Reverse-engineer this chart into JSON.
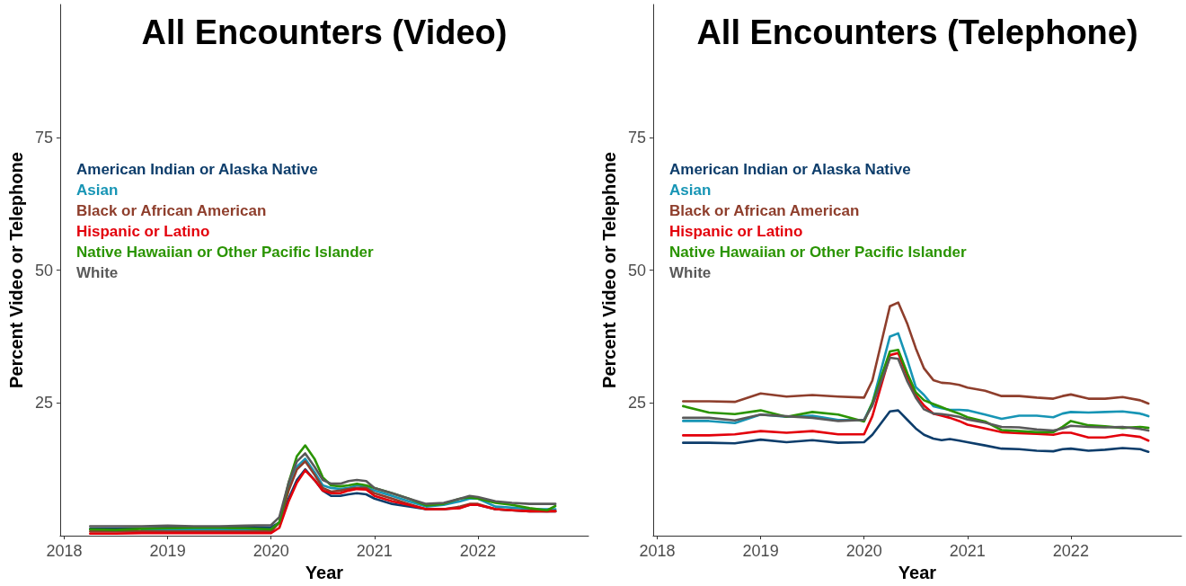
{
  "chart_data": [
    {
      "type": "line",
      "title": "All Encounters (Video)",
      "xlabel": "Year",
      "ylabel": "Percent Video or Telephone",
      "xlim": [
        2017.96,
        2023.07
      ],
      "ylim": [
        0,
        100
      ],
      "xticks": [
        2018,
        2019,
        2020,
        2021,
        2022
      ],
      "yticks": [
        25,
        50,
        75
      ],
      "grid": false,
      "legend": "top left",
      "marker": "none",
      "line_style": "solid",
      "x": [
        2018.25,
        2018.5,
        2018.75,
        2019,
        2019.25,
        2019.5,
        2019.75,
        2020,
        2020.08,
        2020.17,
        2020.25,
        2020.33,
        2020.42,
        2020.5,
        2020.58,
        2020.67,
        2020.75,
        2020.83,
        2020.92,
        2021,
        2021.17,
        2021.33,
        2021.5,
        2021.67,
        2021.83,
        2021.92,
        2022,
        2022.17,
        2022.33,
        2022.5,
        2022.67,
        2022.75
      ],
      "series": [
        {
          "name": "American Indian or Alaska Native",
          "color": "#0d3d6b",
          "values": [
            1.3,
            1.3,
            1.4,
            1.5,
            1.5,
            1.5,
            1.5,
            1.6,
            2.5,
            7,
            10.5,
            12.5,
            10.5,
            8.5,
            7.5,
            7.5,
            7.8,
            8,
            7.8,
            7,
            6,
            5.5,
            5,
            5,
            5.3,
            5.8,
            5.8,
            5,
            4.8,
            4.6,
            4.6,
            4.6
          ]
        },
        {
          "name": "Asian",
          "color": "#1795b5",
          "values": [
            null,
            null,
            1.1,
            1.1,
            1.2,
            1.2,
            1.2,
            1.2,
            2.5,
            9,
            13,
            14.5,
            12,
            9.5,
            9,
            8.8,
            9,
            9.5,
            9.2,
            8.5,
            7.5,
            6.5,
            5.5,
            5.8,
            6.5,
            7,
            7,
            5.5,
            5.3,
            5,
            5,
            5
          ]
        },
        {
          "name": "Black or African American",
          "color": "#8e3e2c",
          "values": [
            0.8,
            0.8,
            0.8,
            0.8,
            0.8,
            0.8,
            0.8,
            0.8,
            2.5,
            8.5,
            12.5,
            14,
            11.5,
            9,
            8.3,
            8.5,
            8.8,
            9,
            9,
            8,
            7,
            6,
            5,
            5,
            5.5,
            6,
            6,
            5,
            4.8,
            4.7,
            4.6,
            4.7
          ]
        },
        {
          "name": "Hispanic or Latino",
          "color": "#e3000b",
          "values": [
            0.4,
            0.4,
            0.5,
            0.5,
            0.5,
            0.5,
            0.5,
            0.5,
            1.5,
            6.5,
            10,
            12.3,
            10.5,
            8.5,
            8,
            8,
            8.5,
            8.8,
            8.7,
            7.5,
            6.5,
            5.8,
            5,
            5,
            5.2,
            5.8,
            5.8,
            5,
            4.8,
            4.6,
            4.6,
            4.6
          ]
        },
        {
          "name": "Native Hawaiian or Other Pacific Islander",
          "color": "#2a9400",
          "values": [
            1.2,
            1.1,
            1.3,
            1.4,
            1.5,
            1.5,
            1.4,
            1.2,
            2.5,
            10,
            15,
            17,
            14.5,
            11,
            9.5,
            9.3,
            9.5,
            9.8,
            9.5,
            9,
            8,
            7,
            5.7,
            6,
            7,
            7.2,
            7,
            6.2,
            5.8,
            5.2,
            4.8,
            5.6
          ]
        },
        {
          "name": "White",
          "color": "#595959",
          "values": [
            1.8,
            1.8,
            1.8,
            1.9,
            1.8,
            1.8,
            1.9,
            2,
            3.5,
            10,
            14,
            15.5,
            13,
            10.5,
            9.8,
            9.8,
            10.3,
            10.5,
            10.3,
            9,
            8,
            7,
            6,
            6.2,
            7,
            7.5,
            7.3,
            6.5,
            6.2,
            6,
            6,
            6
          ]
        }
      ]
    },
    {
      "type": "line",
      "title": "All Encounters (Telephone)",
      "xlabel": "Year",
      "ylabel": "Percent Video or Telephone",
      "xlim": [
        2017.96,
        2023.07
      ],
      "ylim": [
        0,
        100
      ],
      "xticks": [
        2018,
        2019,
        2020,
        2021,
        2022
      ],
      "yticks": [
        25,
        50,
        75
      ],
      "grid": false,
      "legend": "top left",
      "marker": "none",
      "line_style": "solid",
      "x": [
        2018.25,
        2018.5,
        2018.75,
        2019,
        2019.25,
        2019.5,
        2019.75,
        2020,
        2020.08,
        2020.25,
        2020.33,
        2020.42,
        2020.5,
        2020.58,
        2020.67,
        2020.75,
        2020.83,
        2020.92,
        2021,
        2021.17,
        2021.33,
        2021.5,
        2021.67,
        2021.83,
        2021.92,
        2022,
        2022.17,
        2022.33,
        2022.5,
        2022.67,
        2022.75
      ],
      "series": [
        {
          "name": "American Indian or Alaska Native",
          "color": "#0d3d6b",
          "values": [
            17.5,
            17.5,
            17.4,
            18.1,
            17.6,
            18,
            17.5,
            17.6,
            19,
            23.4,
            23.6,
            21.8,
            20.2,
            19,
            18.3,
            18,
            18.2,
            17.9,
            17.6,
            17,
            16.4,
            16.3,
            16,
            15.9,
            16.3,
            16.4,
            16,
            16.2,
            16.5,
            16.3,
            15.8
          ]
        },
        {
          "name": "Asian",
          "color": "#1795b5",
          "values": [
            21.6,
            21.6,
            21.2,
            22.8,
            22.4,
            22.6,
            21.8,
            21.8,
            25,
            37.5,
            38.1,
            33,
            28,
            26.5,
            24.4,
            24,
            23.7,
            23.7,
            23.6,
            22.8,
            22,
            22.6,
            22.6,
            22.3,
            23,
            23.3,
            23.2,
            23.3,
            23.4,
            23,
            22.5
          ]
        },
        {
          "name": "Black or African American",
          "color": "#8e3e2c",
          "values": [
            25.3,
            25.3,
            25.2,
            26.8,
            26.2,
            26.5,
            26.2,
            26,
            29.2,
            43.2,
            43.9,
            39.8,
            35.3,
            31.5,
            29.3,
            28.8,
            28.7,
            28.4,
            27.9,
            27.3,
            26.3,
            26.3,
            26,
            25.8,
            26.3,
            26.6,
            25.8,
            25.8,
            26.1,
            25.5,
            24.9
          ]
        },
        {
          "name": "Hispanic or Latino",
          "color": "#e3000b",
          "values": [
            18.9,
            18.9,
            19.1,
            19.7,
            19.4,
            19.7,
            19.1,
            19.1,
            22.5,
            34,
            34.4,
            30,
            26.5,
            24.5,
            23,
            22.6,
            22.2,
            21.6,
            20.9,
            20.2,
            19.5,
            19.3,
            19.2,
            19,
            19.4,
            19.4,
            18.5,
            18.5,
            19,
            18.6,
            17.9
          ]
        },
        {
          "name": "Native Hawaiian or Other Pacific Islander",
          "color": "#2a9400",
          "values": [
            24.4,
            23.2,
            22.9,
            23.6,
            22.4,
            23.3,
            22.8,
            21.5,
            25,
            34.7,
            35,
            30.5,
            27,
            25.5,
            24.8,
            24.2,
            23.6,
            23,
            22.3,
            21.5,
            19.9,
            19.7,
            19.5,
            19.5,
            20.5,
            21.6,
            20.8,
            20.6,
            20.3,
            20.5,
            20.3
          ]
        },
        {
          "name": "White",
          "color": "#595959",
          "values": [
            22.2,
            22.2,
            21.7,
            22.8,
            22.5,
            22.2,
            21.6,
            21.8,
            24.5,
            33.5,
            33.3,
            29,
            26,
            23.8,
            23,
            22.9,
            22.7,
            22.4,
            21.9,
            21.3,
            20.5,
            20.4,
            20,
            19.8,
            20.2,
            20.7,
            20.5,
            20.4,
            20.5,
            20.1,
            19.8
          ]
        }
      ]
    }
  ]
}
